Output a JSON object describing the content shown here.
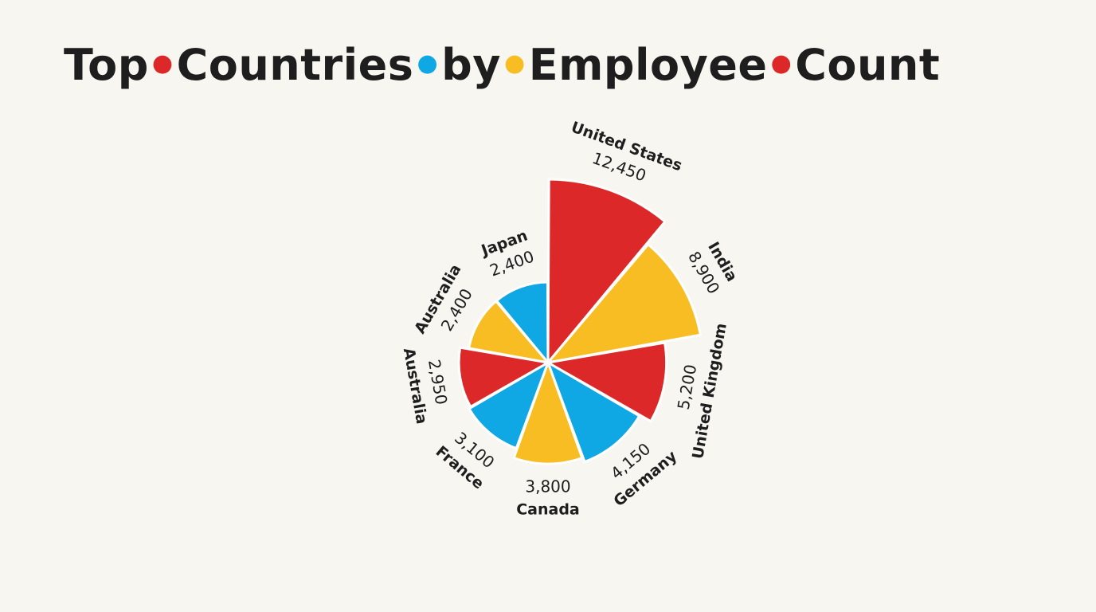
{
  "colors": {
    "red": "#dc2828",
    "yellow": "#f7bd23",
    "blue": "#0fa8e4",
    "sep_red": "#dc2828",
    "sep_blue": "#0fa8e4",
    "sep_yellow": "#f7bd23"
  },
  "chart_data": {
    "type": "pie",
    "variant": "polar-area",
    "title": "Top Countries by Employee Count",
    "title_words": [
      "Top",
      "Countries",
      "by",
      "Employee",
      "Count"
    ],
    "separator_colors": [
      "red",
      "blue",
      "yellow",
      "red"
    ],
    "series": [
      {
        "name": "United States",
        "value": 12450,
        "value_label": "12,450",
        "color": "red"
      },
      {
        "name": "India",
        "value": 8900,
        "value_label": "8,900",
        "color": "yellow"
      },
      {
        "name": "United Kingdom",
        "value": 5200,
        "value_label": "5,200",
        "color": "red"
      },
      {
        "name": "Germany",
        "value": 4150,
        "value_label": "4,150",
        "color": "blue"
      },
      {
        "name": "Canada",
        "value": 3800,
        "value_label": "3,800",
        "color": "yellow"
      },
      {
        "name": "France",
        "value": 3100,
        "value_label": "3,100",
        "color": "blue"
      },
      {
        "name": "Australia",
        "value": 2950,
        "value_label": "2,950",
        "color": "red"
      },
      {
        "name": "Australia",
        "value": 2400,
        "value_label": "2,400",
        "color": "yellow"
      },
      {
        "name": "Japan",
        "value": 2400,
        "value_label": "2,400",
        "color": "blue"
      }
    ]
  }
}
